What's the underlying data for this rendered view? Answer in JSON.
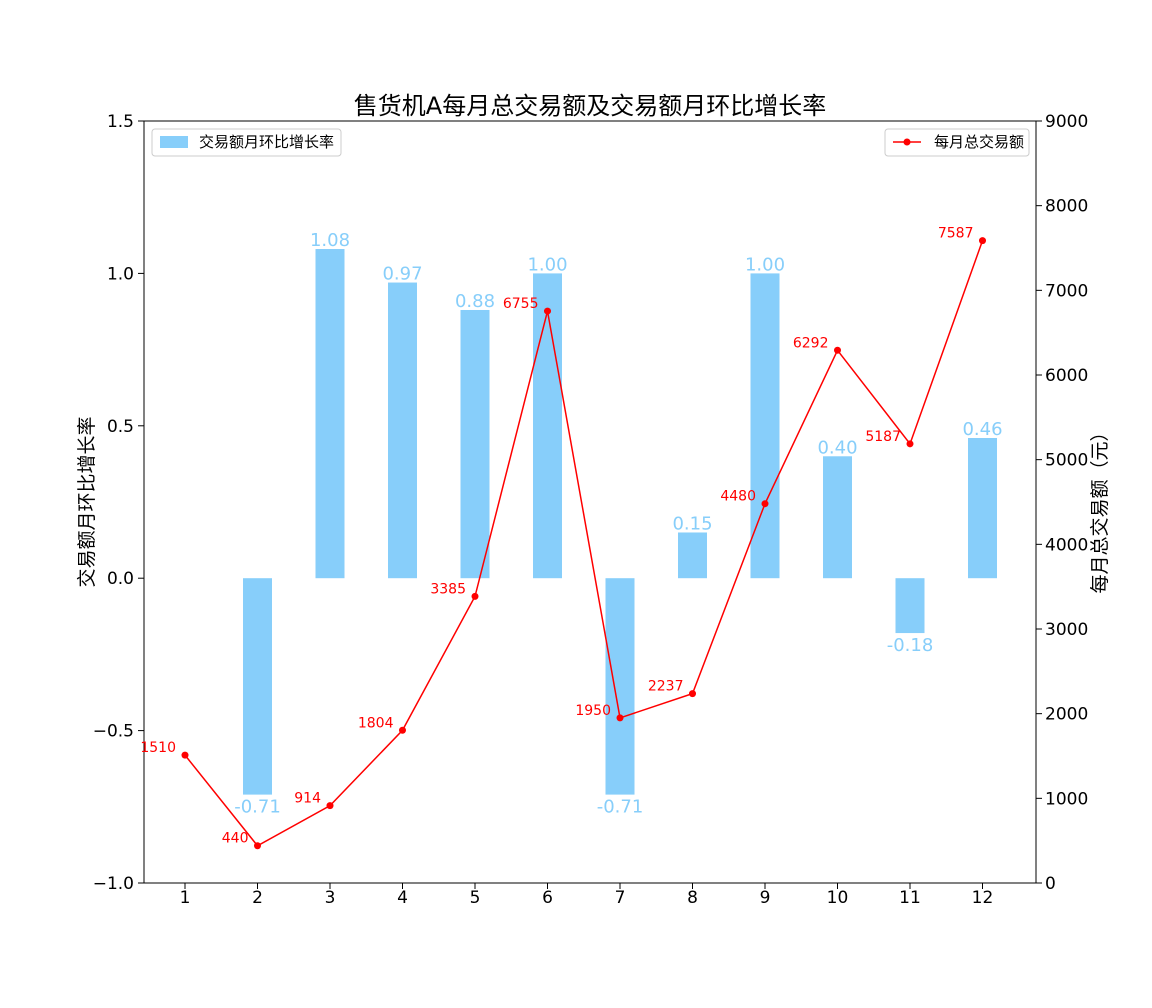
{
  "chart_data": {
    "type": "bar+line",
    "title": "售货机A每月总交易额及交易额月环比增长率",
    "categories": [
      "1",
      "2",
      "3",
      "4",
      "5",
      "6",
      "7",
      "8",
      "9",
      "10",
      "11",
      "12"
    ],
    "series": [
      {
        "name": "交易额月环比增长率",
        "type": "bar",
        "axis": "left",
        "color": "#87CEFA",
        "values": [
          null,
          -0.71,
          1.08,
          0.97,
          0.88,
          1.0,
          -0.71,
          0.15,
          1.0,
          0.4,
          -0.18,
          0.46
        ],
        "labels": [
          "",
          "-0.71",
          "1.08",
          "0.97",
          "0.88",
          "1.00",
          "-0.71",
          "0.15",
          "1.00",
          "0.40",
          "-0.18",
          "0.46"
        ]
      },
      {
        "name": "每月总交易额",
        "type": "line",
        "axis": "right",
        "color": "#FF0000",
        "values": [
          1510,
          440,
          914,
          1804,
          3385,
          6755,
          1950,
          2237,
          4480,
          6292,
          5187,
          7587
        ],
        "labels": [
          "1510",
          "440",
          "914",
          "1804",
          "3385",
          "6755",
          "1950",
          "2237",
          "4480",
          "6292",
          "5187",
          "7587"
        ]
      }
    ],
    "y_left": {
      "label": "交易额月环比增长率",
      "range": [
        -1.0,
        1.5
      ],
      "ticks": [
        -1.0,
        -0.5,
        0.0,
        0.5,
        1.0,
        1.5
      ],
      "tick_labels": [
        "−1.0",
        "−0.5",
        "0.0",
        "0.5",
        "1.0",
        "1.5"
      ]
    },
    "y_right": {
      "label": "每月总交易额（元）",
      "range": [
        0,
        9000
      ],
      "ticks": [
        0,
        1000,
        2000,
        3000,
        4000,
        5000,
        6000,
        7000,
        8000,
        9000
      ],
      "tick_labels": [
        "0",
        "1000",
        "2000",
        "3000",
        "4000",
        "5000",
        "6000",
        "7000",
        "8000",
        "9000"
      ]
    },
    "grid": false,
    "legends": [
      {
        "series": "交易额月环比增长率",
        "placement": "top-left"
      },
      {
        "series": "每月总交易额",
        "placement": "top-right"
      }
    ]
  }
}
